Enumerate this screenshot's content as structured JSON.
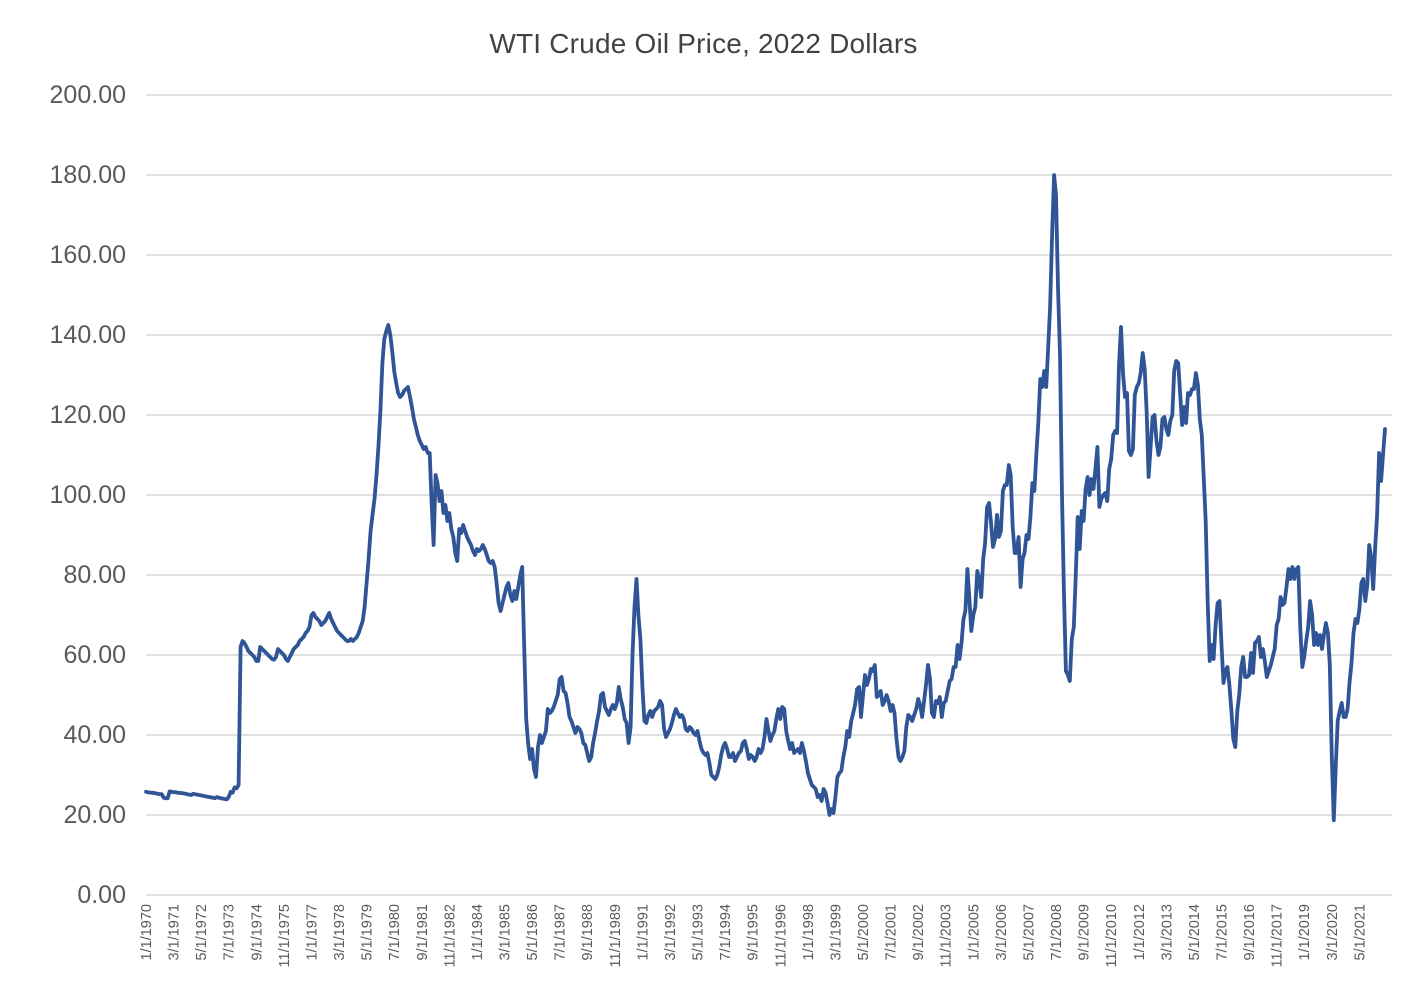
{
  "colors": {
    "line": "#2F5597",
    "gridline": "#D6D6D6",
    "axis_text": "#595959",
    "title_text": "#424242",
    "background": "#FFFFFF"
  },
  "chart_data": {
    "type": "line",
    "title": "WTI Crude Oil Price, 2022 Dollars",
    "xlabel": "",
    "ylabel": "",
    "legend": "none",
    "grid": "horizontal",
    "ylim": [
      0,
      200
    ],
    "y_tick_step": 20,
    "y_tick_labels": [
      "0.00",
      "20.00",
      "40.00",
      "60.00",
      "80.00",
      "100.00",
      "120.00",
      "140.00",
      "160.00",
      "180.00",
      "200.00"
    ],
    "x_unit": "month",
    "x_start": "1/1/1970",
    "x_end": "6/1/2022",
    "x_tick_interval_months": 14,
    "x_tick_labels": [
      "1/1/1970",
      "3/1/1971",
      "5/1/1972",
      "7/1/1973",
      "9/1/1974",
      "11/1/1975",
      "1/1/1977",
      "3/1/1978",
      "5/1/1979",
      "7/1/1980",
      "9/1/1981",
      "11/1/1982",
      "1/1/1984",
      "3/1/1985",
      "5/1/1986",
      "7/1/1987",
      "9/1/1988",
      "11/1/1989",
      "1/1/1991",
      "3/1/1992",
      "5/1/1993",
      "7/1/1994",
      "9/1/1995",
      "11/1/1996",
      "1/1/1998",
      "3/1/1999",
      "5/1/2000",
      "7/1/2001",
      "9/1/2002",
      "11/1/2003",
      "1/1/2005",
      "3/1/2006",
      "5/1/2007",
      "7/1/2008",
      "9/1/2009",
      "11/1/2010",
      "1/1/2012",
      "3/1/2013",
      "5/1/2014",
      "7/1/2015",
      "9/1/2016",
      "11/1/2017",
      "1/1/2019",
      "3/1/2020",
      "5/1/2021"
    ],
    "values_by_year": {
      "1970": [
        25.8,
        25.7,
        25.6,
        25.6,
        25.5,
        25.4,
        25.3,
        25.2,
        25.2,
        24.3,
        24.2,
        24.2
      ],
      "1971": [
        25.9,
        25.8,
        25.7,
        25.7,
        25.6,
        25.5,
        25.5,
        25.4,
        25.3,
        25.2,
        25.1,
        25.0
      ],
      "1972": [
        25.3,
        25.2,
        25.1,
        25.0,
        24.9,
        24.8,
        24.7,
        24.6,
        24.5,
        24.4,
        24.3,
        24.2
      ],
      "1973": [
        24.5,
        24.3,
        24.2,
        24.1,
        24.0,
        23.9,
        24.5,
        25.8,
        25.6,
        26.9,
        26.7,
        27.5
      ],
      "1974": [
        62.0,
        63.5,
        63.0,
        62.0,
        61.0,
        60.5,
        60.0,
        59.5,
        58.5,
        58.5,
        62.0,
        61.5
      ],
      "1975": [
        61.0,
        60.5,
        60.0,
        59.5,
        59.0,
        58.8,
        59.5,
        61.5,
        61.0,
        60.5,
        60.0,
        59.0
      ],
      "1976": [
        58.5,
        59.5,
        60.5,
        61.5,
        62.0,
        62.5,
        63.5,
        64.0,
        64.5,
        65.5,
        66.0,
        67.0
      ],
      "1977": [
        70.0,
        70.5,
        69.5,
        69.0,
        68.5,
        67.5,
        68.0,
        68.5,
        69.5,
        70.5,
        69.0,
        68.0
      ],
      "1978": [
        67.0,
        66.0,
        65.5,
        65.0,
        64.5,
        64.0,
        63.5,
        63.5,
        64.0,
        63.5,
        64.0,
        64.5
      ],
      "1979": [
        65.5,
        67.0,
        68.5,
        72.0,
        78.0,
        84.0,
        91.0,
        95.0,
        99.0,
        105.0,
        112.0,
        121.0
      ],
      "1980": [
        133.0,
        139.0,
        141.0,
        142.5,
        140.0,
        136.0,
        131.0,
        128.0,
        125.5,
        124.5,
        125.0,
        126.0
      ],
      "1981": [
        126.5,
        127.0,
        124.5,
        122.0,
        119.0,
        117.0,
        115.0,
        113.5,
        112.5,
        111.5,
        112.0,
        110.5
      ],
      "1982": [
        110.5,
        98.0,
        87.5,
        105.0,
        103.0,
        98.5,
        101.0,
        95.5,
        97.5,
        93.5,
        95.5,
        91.5
      ],
      "1983": [
        89.5,
        85.5,
        83.5,
        91.5,
        90.5,
        92.5,
        91.0,
        89.5,
        88.5,
        87.5,
        86.0,
        85.0
      ],
      "1984": [
        86.5,
        86.0,
        86.5,
        87.5,
        86.5,
        85.0,
        83.5,
        83.0,
        83.5,
        82.0,
        78.0,
        73.0
      ],
      "1985": [
        71.0,
        73.0,
        75.0,
        77.0,
        78.0,
        75.0,
        73.5,
        76.0,
        74.0,
        77.0,
        80.0,
        82.0
      ],
      "1986": [
        62.0,
        44.0,
        38.0,
        34.0,
        36.5,
        31.5,
        29.5,
        37.0,
        40.0,
        38.0,
        39.5,
        41.0
      ],
      "1987": [
        46.5,
        45.5,
        46.0,
        47.0,
        48.5,
        50.0,
        54.0,
        54.5,
        51.0,
        50.5,
        48.0,
        44.5
      ],
      "1988": [
        43.5,
        42.0,
        40.5,
        42.0,
        41.5,
        40.5,
        38.0,
        37.5,
        35.5,
        33.5,
        34.5,
        38.0
      ],
      "1989": [
        40.5,
        43.5,
        46.0,
        50.0,
        50.5,
        47.0,
        46.0,
        45.0,
        46.5,
        47.5,
        46.5,
        48.0
      ],
      "1990": [
        52.0,
        49.0,
        47.0,
        44.0,
        43.0,
        38.0,
        42.0,
        60.0,
        72.0,
        79.0,
        70.0,
        64.0
      ],
      "1991": [
        52.0,
        43.5,
        43.0,
        45.0,
        46.0,
        44.5,
        46.0,
        46.5,
        47.0,
        48.5,
        47.5,
        41.5
      ],
      "1992": [
        39.5,
        40.5,
        41.5,
        43.0,
        45.0,
        46.5,
        45.5,
        44.5,
        45.0,
        44.0,
        41.5,
        41.0
      ],
      "1993": [
        42.0,
        41.5,
        40.5,
        40.0,
        41.0,
        38.5,
        36.5,
        35.5,
        35.0,
        35.5,
        33.0,
        30.0
      ],
      "1994": [
        29.5,
        29.0,
        30.0,
        32.0,
        35.0,
        37.0,
        38.0,
        36.5,
        34.5,
        34.5,
        35.5,
        33.5
      ],
      "1995": [
        34.5,
        35.5,
        36.0,
        38.0,
        38.5,
        36.5,
        34.0,
        35.0,
        34.5,
        33.5,
        34.5,
        36.5
      ],
      "1996": [
        35.5,
        36.5,
        39.5,
        44.0,
        41.0,
        38.5,
        40.0,
        41.0,
        44.0,
        46.5,
        44.0,
        47.0
      ],
      "1997": [
        46.5,
        41.0,
        38.5,
        36.5,
        38.0,
        35.5,
        36.0,
        36.5,
        35.5,
        38.0,
        36.0,
        33.5
      ],
      "1998": [
        30.5,
        29.0,
        27.5,
        27.0,
        26.5,
        24.5,
        25.0,
        23.5,
        26.5,
        25.5,
        23.0,
        20.0
      ],
      "1999": [
        21.5,
        20.5,
        24.5,
        29.5,
        30.5,
        31.0,
        34.5,
        37.0,
        41.0,
        39.5,
        43.5,
        45.5
      ],
      "2000": [
        47.5,
        51.5,
        52.0,
        44.5,
        50.0,
        55.0,
        52.5,
        54.0,
        56.5,
        56.0,
        57.5,
        49.5
      ],
      "2001": [
        50.0,
        51.0,
        47.5,
        48.5,
        50.0,
        48.5,
        46.0,
        47.5,
        45.5,
        39.0,
        34.5,
        33.5
      ],
      "2002": [
        34.5,
        36.0,
        42.0,
        45.0,
        44.5,
        43.5,
        45.0,
        46.5,
        49.0,
        47.5,
        44.5,
        48.5
      ],
      "2003": [
        52.5,
        57.5,
        54.0,
        45.5,
        44.5,
        48.5,
        48.0,
        49.5,
        44.5,
        48.0,
        48.5,
        51.0
      ],
      "2004": [
        53.5,
        54.0,
        57.0,
        57.0,
        62.5,
        59.0,
        63.0,
        69.0,
        71.0,
        81.5,
        74.0,
        66.0
      ],
      "2005": [
        70.0,
        72.0,
        81.0,
        79.0,
        74.5,
        84.0,
        88.0,
        97.0,
        98.0,
        93.0,
        87.0,
        89.0
      ],
      "2006": [
        95.0,
        89.5,
        91.0,
        101.0,
        102.5,
        102.5,
        107.5,
        105.0,
        92.0,
        85.5,
        85.5,
        89.5
      ],
      "2007": [
        77.0,
        84.0,
        85.5,
        90.0,
        89.0,
        94.5,
        103.0,
        101.0,
        110.0,
        118.0,
        129.0,
        127.0
      ],
      "2008": [
        131.0,
        127.0,
        137.0,
        147.0,
        165.0,
        180.0,
        175.0,
        152.0,
        135.0,
        100.0,
        76.0,
        56.0
      ],
      "2009": [
        55.0,
        53.5,
        64.0,
        67.0,
        79.5,
        94.5,
        86.5,
        96.0,
        93.5,
        101.5,
        104.5,
        100.0
      ],
      "2010": [
        104.0,
        101.5,
        106.5,
        112.0,
        97.0,
        99.0,
        100.0,
        100.5,
        98.5,
        106.5,
        109.0,
        115.0
      ],
      "2011": [
        116.0,
        115.5,
        133.0,
        142.0,
        130.5,
        124.5,
        125.5,
        111.0,
        110.0,
        111.5,
        125.0,
        127.0
      ],
      "2012": [
        128.0,
        130.5,
        135.5,
        131.5,
        120.5,
        104.5,
        112.0,
        119.5,
        120.0,
        113.5,
        110.0,
        112.0
      ],
      "2013": [
        119.0,
        119.5,
        116.5,
        115.0,
        118.5,
        120.0,
        131.0,
        133.5,
        133.0,
        125.5,
        117.5,
        122.0
      ],
      "2014": [
        118.0,
        125.5,
        125.0,
        126.5,
        126.5,
        130.5,
        127.5,
        119.0,
        115.0,
        104.0,
        93.5,
        73.0
      ],
      "2015": [
        58.5,
        62.5,
        59.0,
        67.5,
        73.0,
        73.5,
        62.5,
        53.0,
        56.0,
        57.0,
        52.5,
        46.0
      ],
      "2016": [
        39.0,
        37.0,
        46.0,
        50.0,
        57.0,
        59.5,
        54.5,
        54.5,
        55.0,
        60.5,
        55.5,
        63.0
      ],
      "2017": [
        63.5,
        64.5,
        59.5,
        61.5,
        58.5,
        54.5,
        56.0,
        57.5,
        59.5,
        61.5,
        67.5,
        69.0
      ],
      "2018": [
        74.5,
        72.5,
        73.0,
        77.0,
        81.5,
        79.0,
        82.0,
        79.0,
        81.5,
        82.0,
        66.5,
        57.0
      ],
      "2019": [
        59.5,
        63.5,
        67.0,
        73.5,
        70.0,
        62.5,
        65.5,
        62.5,
        65.0,
        61.5,
        65.0,
        68.0
      ],
      "2020": [
        65.5,
        57.5,
        34.5,
        18.7,
        32.5,
        43.5,
        46.0,
        48.0,
        44.5,
        44.5,
        46.5,
        53.0
      ],
      "2021": [
        58.0,
        65.5,
        69.0,
        68.0,
        71.5,
        78.0,
        79.0,
        73.5,
        77.5,
        87.5,
        84.5,
        76.5
      ],
      "2022": [
        87.0,
        95.0,
        110.5,
        103.5,
        110.0,
        116.5
      ]
    }
  }
}
